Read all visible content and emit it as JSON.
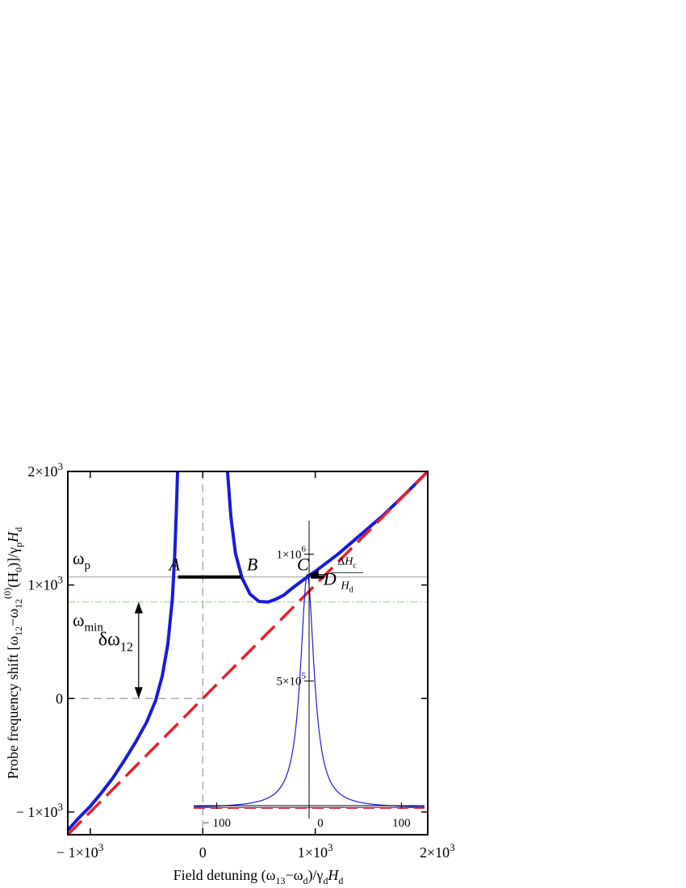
{
  "chart_data": [
    {
      "type": "line",
      "xlabel_parts": [
        "Field detuning (ω",
        "13",
        "−ω",
        "d",
        ")/γ",
        "d",
        "H",
        "d"
      ],
      "ylabel_parts": [
        "Probe frequency shift [ω",
        "12",
        "−ω",
        "12",
        "(0)",
        "(H",
        "0",
        ")]/γ",
        "p",
        "H",
        "d"
      ],
      "xlim": [
        -1200,
        2000
      ],
      "ylim": [
        -1200,
        2000
      ],
      "x_ticks": [
        {
          "value": -1000,
          "label": "− 1×10",
          "exp": "3"
        },
        {
          "value": 0,
          "label": "0",
          "exp": ""
        },
        {
          "value": 1000,
          "label": "1×10",
          "exp": "3"
        },
        {
          "value": 2000,
          "label": "2×10",
          "exp": "3"
        }
      ],
      "y_ticks": [
        {
          "value": -1000,
          "label": "− 1×10",
          "exp": "3"
        },
        {
          "value": 0,
          "label": "0",
          "exp": ""
        },
        {
          "value": 1000,
          "label": "1×10",
          "exp": "3"
        },
        {
          "value": 2000,
          "label": "2×10",
          "exp": "3"
        }
      ],
      "series": [
        {
          "style": "solid",
          "color": "#1a1adc",
          "x": [
            -1200,
            -1100,
            -1000,
            -900,
            -800,
            -700,
            -600,
            -500,
            -420,
            -360,
            -310,
            -270,
            -250,
            -235,
            -224
          ],
          "y": [
            -1160,
            -1050,
            -950,
            -830,
            -700,
            -550,
            -390,
            -210,
            -20,
            200,
            480,
            880,
            1250,
            1650,
            2000
          ]
        },
        {
          "style": "solid",
          "color": "#1a1adc",
          "x": [
            220,
            250,
            290,
            350,
            420,
            500,
            580,
            650,
            720,
            800,
            900,
            1000,
            1200,
            1400,
            1600,
            1800,
            2000
          ],
          "y": [
            2000,
            1600,
            1280,
            1060,
            920,
            855,
            850,
            875,
            910,
            975,
            1050,
            1120,
            1270,
            1440,
            1610,
            1800,
            2000
          ]
        },
        {
          "style": "dashed",
          "color": "#e8202a",
          "x": [
            -1200,
            2000
          ],
          "y": [
            -1200,
            2000
          ]
        }
      ],
      "hlines": [
        {
          "y": 1070,
          "label": "ω",
          "sub": "p"
        },
        {
          "y": 850,
          "label": "ω",
          "sub": "min"
        }
      ],
      "segments": [
        {
          "x1": -220,
          "x2": 340,
          "y": 1070
        },
        {
          "x1": 960,
          "x2": 1080,
          "y": 1070
        }
      ],
      "points": [
        {
          "label": "A",
          "x": -250,
          "y": 1130
        },
        {
          "label": "B",
          "x": 440,
          "y": 1130
        },
        {
          "label": "C",
          "x": 890,
          "y": 1130
        },
        {
          "label": "D",
          "x": 1130,
          "y": 1000
        }
      ],
      "arrow": {
        "x": -570,
        "y_from": 850,
        "y_to": 0,
        "label": "δω",
        "sub": "12"
      }
    },
    {
      "type": "line",
      "inset": true,
      "xlim": [
        -125,
        125
      ],
      "ylim": [
        -10000,
        1100000
      ],
      "x_ticks": [
        {
          "value": -100,
          "label": "− 100",
          "exp": ""
        },
        {
          "value": 0,
          "label": "0",
          "exp": ""
        },
        {
          "value": 100,
          "label": "100",
          "exp": ""
        }
      ],
      "y_ticks": [
        {
          "value": 500000,
          "label": "5×10",
          "exp": "5"
        },
        {
          "value": 1000000,
          "label": "1×10",
          "exp": "6"
        }
      ],
      "series": [
        {
          "style": "solid",
          "color": "#1a1adc",
          "shape": "lorentzian",
          "center": -2,
          "peak": 920000,
          "width": 9
        },
        {
          "style": "dashed",
          "color": "#e8202a",
          "x": [
            -125,
            125
          ],
          "y": [
            0,
            0
          ]
        },
        {
          "style": "solid",
          "color": "#7a3aa0",
          "x": [
            -125,
            125
          ],
          "y": [
            1500,
            1500
          ]
        }
      ],
      "annotation": {
        "top": "ΔH",
        "top_sub": "c",
        "bottom": "H",
        "bottom_sub": "d"
      }
    }
  ]
}
